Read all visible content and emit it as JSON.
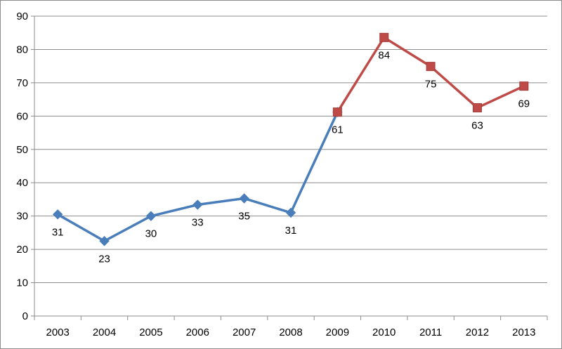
{
  "chart_data": {
    "type": "line",
    "title": "",
    "xlabel": "",
    "ylabel": "",
    "categories": [
      "2003",
      "2004",
      "2005",
      "2006",
      "2007",
      "2008",
      "2009",
      "2010",
      "2011",
      "2012",
      "2013"
    ],
    "ylim": [
      0,
      90
    ],
    "yticks": [
      0,
      10,
      20,
      30,
      40,
      50,
      60,
      70,
      80,
      90
    ],
    "grid": true,
    "legend": "none",
    "series": [
      {
        "color": "#4a7ebb",
        "marker": "diamond",
        "points": [
          {
            "x": "2003",
            "y": 30.5,
            "label": "31"
          },
          {
            "x": "2004",
            "y": 22.5,
            "label": "23"
          },
          {
            "x": "2005",
            "y": 30.0,
            "label": "30"
          },
          {
            "x": "2006",
            "y": 33.4,
            "label": "33"
          },
          {
            "x": "2007",
            "y": 35.3,
            "label": "35"
          },
          {
            "x": "2008",
            "y": 31.0,
            "label": "31"
          },
          {
            "x": "2009",
            "y": 61.2,
            "label": ""
          }
        ]
      },
      {
        "color": "#be4b48",
        "marker": "square",
        "points": [
          {
            "x": "2009",
            "y": 61.2,
            "label": "61"
          },
          {
            "x": "2010",
            "y": 83.6,
            "label": "84"
          },
          {
            "x": "2011",
            "y": 74.9,
            "label": "75"
          },
          {
            "x": "2012",
            "y": 62.5,
            "label": "63"
          },
          {
            "x": "2013",
            "y": 69.0,
            "label": "69"
          }
        ]
      }
    ]
  }
}
